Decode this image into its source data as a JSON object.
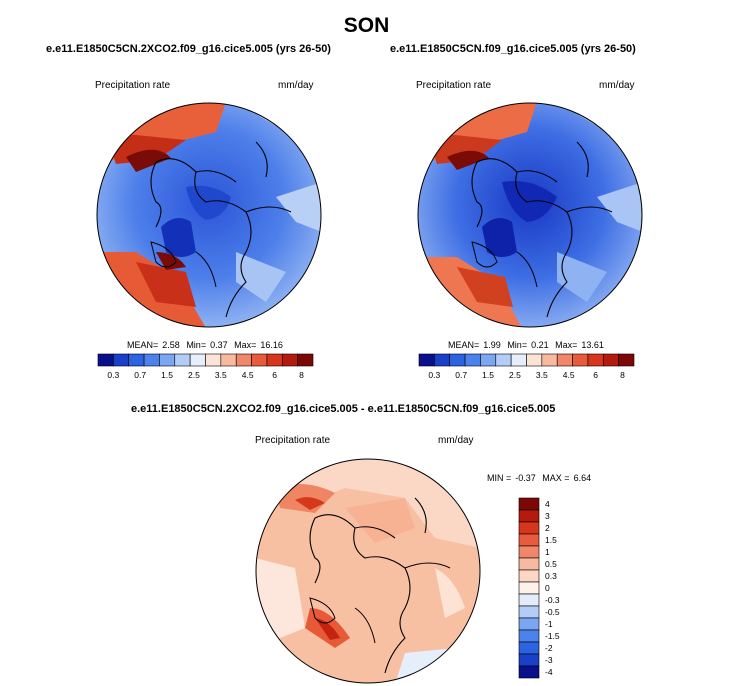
{
  "season": "SON",
  "panels": [
    {
      "title": "e.e11.E1850C5CN.2XCO2.f09_g16.cice5.005 (yrs 26-50)",
      "field": "Precipitation rate",
      "units": "mm/day",
      "stats": {
        "mean_label": "MEAN=",
        "mean": "2.58",
        "min_label": "Min=",
        "min": "0.37",
        "max_label": "Max=",
        "max": "16.16"
      }
    },
    {
      "title": "e.e11.E1850C5CN.f09_g16.cice5.005 (yrs 26-50)",
      "field": "Precipitation rate",
      "units": "mm/day",
      "stats": {
        "mean_label": "MEAN=",
        "mean": "1.99",
        "min_label": "Min=",
        "min": "0.21",
        "max_label": "Max=",
        "max": "13.61"
      }
    }
  ],
  "difference": {
    "title": "e.e11.E1850C5CN.2XCO2.f09_g16.cice5.005 - e.e11.E1850C5CN.f09_g16.cice5.005",
    "field": "Precipitation rate",
    "units": "mm/day",
    "stats": {
      "min_label": "MIN =",
      "min": "-0.37",
      "max_label": "MAX =",
      "max": "6.64"
    }
  },
  "colorbar_abs": {
    "labels": [
      "0.3",
      "0.7",
      "1.5",
      "2.5",
      "3.5",
      "4.5",
      "6",
      "8"
    ],
    "colors": [
      "#0a0f8c",
      "#1a3fc8",
      "#2c63e0",
      "#4b82ec",
      "#7ba6f2",
      "#b4cdf7",
      "#e6eefc",
      "#fbe3d6",
      "#f7b9a0",
      "#f0876a",
      "#e85b3c",
      "#d7361c",
      "#b41a0e",
      "#7c0806"
    ]
  },
  "colorbar_diff": {
    "labels": [
      "4",
      "3",
      "2",
      "1.5",
      "1",
      "0.5",
      "0.3",
      "0",
      "-0.3",
      "-0.5",
      "-1",
      "-1.5",
      "-2",
      "-3",
      "-4"
    ],
    "colors": [
      "#7c0806",
      "#b41a0e",
      "#d7361c",
      "#e85b3c",
      "#f0876a",
      "#f7b9a0",
      "#fbd6c4",
      "#fdf1ea",
      "#e3ecfb",
      "#b4cdf7",
      "#7ba6f2",
      "#4b82ec",
      "#2c63e0",
      "#1a3fc8",
      "#0a0f8c"
    ]
  },
  "map_colors": {
    "ocean_light": "#5b8ded",
    "polar_wet": "#d8401f",
    "polar_dry": "#1d45cf",
    "diff_base": "#f9c3a8",
    "coast": "#000000"
  }
}
